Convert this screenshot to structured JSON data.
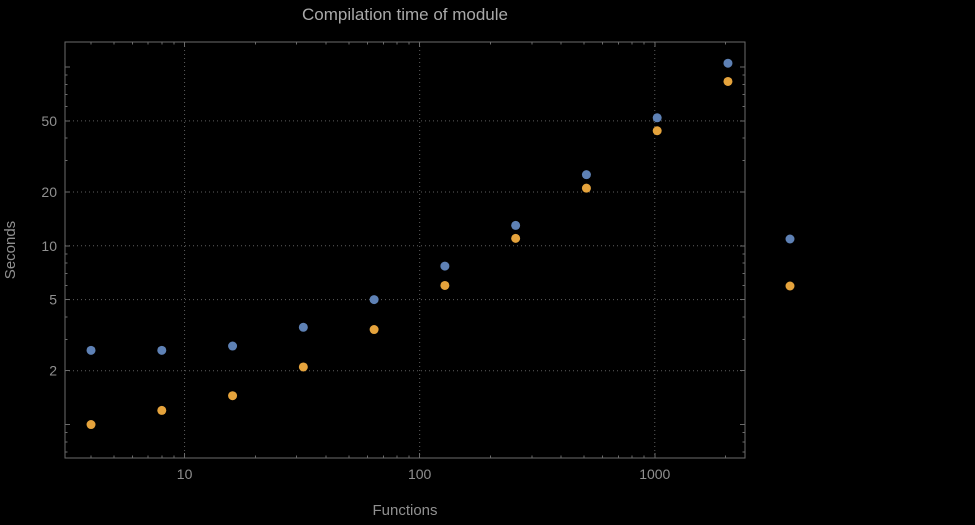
{
  "colors": {
    "background": "#000000",
    "frame": "#6b6b6b",
    "grid": "#5e5e5e",
    "text": "#909090",
    "title": "#a9a9a9",
    "series1": "#5e81b5",
    "series2": "#e5a33c"
  },
  "chart_data": {
    "type": "scatter",
    "title": "Compilation time of module",
    "xlabel": "Functions",
    "ylabel": "Seconds",
    "x_scale": "log",
    "y_scale": "log",
    "xlim": [
      3.1,
      2420
    ],
    "ylim": [
      0.65,
      138
    ],
    "x_ticks": [
      10,
      100,
      1000
    ],
    "y_ticks": [
      2,
      5,
      10,
      20,
      50
    ],
    "grid": true,
    "series": [
      {
        "name": "series-1-blue",
        "color": "#5e81b5",
        "x": [
          4,
          8,
          16,
          32,
          64,
          128,
          256,
          512,
          1024,
          2048
        ],
        "y": [
          2.6,
          2.6,
          2.75,
          3.5,
          5.0,
          7.7,
          13,
          25,
          52,
          105
        ]
      },
      {
        "name": "series-2-orange",
        "color": "#e5a33c",
        "x": [
          4,
          8,
          16,
          32,
          64,
          128,
          256,
          512,
          1024,
          2048
        ],
        "y": [
          1.0,
          1.2,
          1.45,
          2.1,
          3.4,
          6.0,
          11,
          21,
          44,
          83
        ]
      }
    ],
    "legend": {
      "position": "right-outside",
      "items": [
        {
          "marker_color": "#5e81b5"
        },
        {
          "marker_color": "#e5a33c"
        }
      ]
    }
  }
}
